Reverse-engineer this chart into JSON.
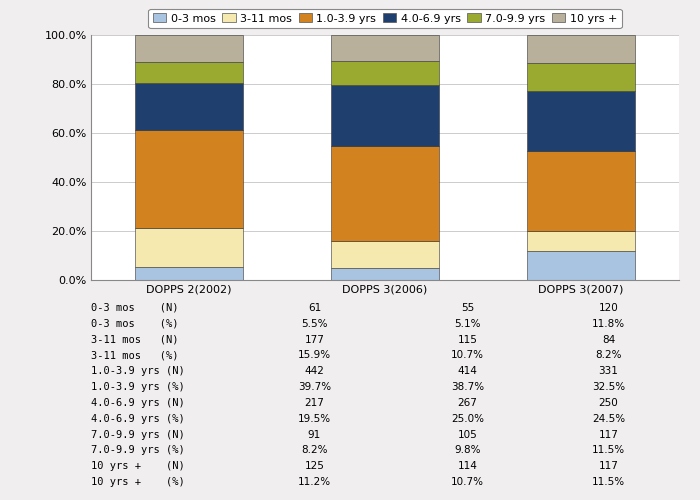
{
  "categories": [
    "DOPPS 2(2002)",
    "DOPPS 3(2006)",
    "DOPPS 3(2007)"
  ],
  "series": [
    {
      "label": "0-3 mos",
      "color": "#a8c4e0",
      "values": [
        5.5,
        5.1,
        11.8
      ]
    },
    {
      "label": "3-11 mos",
      "color": "#f5e9b0",
      "values": [
        15.9,
        10.7,
        8.2
      ]
    },
    {
      "label": "1.0-3.9 yrs",
      "color": "#d2821e",
      "values": [
        39.7,
        38.7,
        32.5
      ]
    },
    {
      "label": "4.0-6.9 yrs",
      "color": "#1f3f6e",
      "values": [
        19.5,
        25.0,
        24.5
      ]
    },
    {
      "label": "7.0-9.9 yrs",
      "color": "#9aaa30",
      "values": [
        8.2,
        9.8,
        11.5
      ]
    },
    {
      "label": "10 yrs +",
      "color": "#b8b09a",
      "values": [
        11.2,
        10.7,
        11.5
      ]
    }
  ],
  "table_rows": [
    {
      "label": "0-3 mos    (N)",
      "values": [
        "61",
        "55",
        "120"
      ]
    },
    {
      "label": "0-3 mos    (%)",
      "values": [
        "5.5%",
        "5.1%",
        "11.8%"
      ]
    },
    {
      "label": "3-11 mos   (N)",
      "values": [
        "177",
        "115",
        "84"
      ]
    },
    {
      "label": "3-11 mos   (%)",
      "values": [
        "15.9%",
        "10.7%",
        "8.2%"
      ]
    },
    {
      "label": "1.0-3.9 yrs (N)",
      "values": [
        "442",
        "414",
        "331"
      ]
    },
    {
      "label": "1.0-3.9 yrs (%)",
      "values": [
        "39.7%",
        "38.7%",
        "32.5%"
      ]
    },
    {
      "label": "4.0-6.9 yrs (N)",
      "values": [
        "217",
        "267",
        "250"
      ]
    },
    {
      "label": "4.0-6.9 yrs (%)",
      "values": [
        "19.5%",
        "25.0%",
        "24.5%"
      ]
    },
    {
      "label": "7.0-9.9 yrs (N)",
      "values": [
        "91",
        "105",
        "117"
      ]
    },
    {
      "label": "7.0-9.9 yrs (%)",
      "values": [
        "8.2%",
        "9.8%",
        "11.5%"
      ]
    },
    {
      "label": "10 yrs +    (N)",
      "values": [
        "125",
        "114",
        "117"
      ]
    },
    {
      "label": "10 yrs +    (%)",
      "values": [
        "11.2%",
        "10.7%",
        "11.5%"
      ]
    }
  ],
  "ylim": [
    0,
    100
  ],
  "yticks": [
    0,
    20,
    40,
    60,
    80,
    100
  ],
  "ytick_labels": [
    "0.0%",
    "20.0%",
    "40.0%",
    "60.0%",
    "80.0%",
    "100.0%"
  ],
  "bar_width": 0.55,
  "background_color": "#f0eeee",
  "plot_bg_color": "#ffffff",
  "grid_color": "#cccccc",
  "font_size": 8,
  "legend_fontsize": 8,
  "table_fontsize": 7.5
}
